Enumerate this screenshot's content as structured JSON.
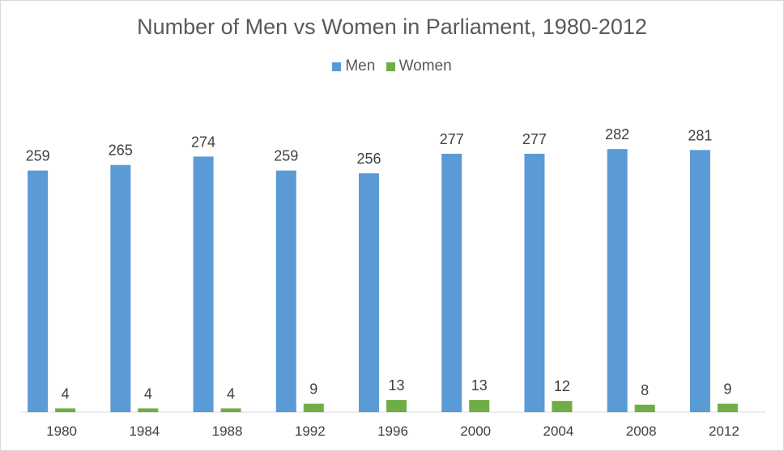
{
  "chart_data": {
    "type": "bar",
    "title": "Number of Men vs Women in Parliament, 1980-2012",
    "xlabel": "",
    "ylabel": "",
    "categories": [
      "1980",
      "1984",
      "1988",
      "1992",
      "1996",
      "2000",
      "2004",
      "2008",
      "2012"
    ],
    "series": [
      {
        "name": "Men",
        "color": "#5b9bd5",
        "values": [
          259,
          265,
          274,
          259,
          256,
          277,
          277,
          282,
          281
        ]
      },
      {
        "name": "Women",
        "color": "#70ad47",
        "values": [
          4,
          4,
          4,
          9,
          13,
          13,
          12,
          8,
          9
        ]
      }
    ],
    "ylim": [
      0,
      320
    ],
    "grid": false,
    "legend": "top-center",
    "data_labels": true
  }
}
